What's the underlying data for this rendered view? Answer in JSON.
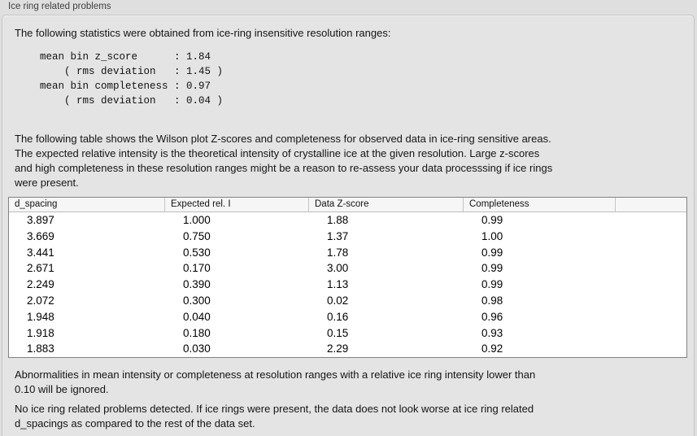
{
  "window": {
    "title": "Ice ring related problems"
  },
  "colors": {
    "window_bg": "#dfdfdf",
    "panel_bg": "#e4e4e4",
    "panel_border": "#c6c6c6",
    "table_border": "#828282",
    "table_header_bg": "#f6f6f6"
  },
  "panel": {
    "intro": "The following statistics were obtained from ice-ring insensitive resolution ranges:",
    "stats_block": "mean bin z_score      : 1.84\n    ( rms deviation   : 1.45 )\nmean bin completeness : 0.97\n    ( rms deviation   : 0.04 )",
    "table_description": "The following table shows the Wilson plot Z-scores and completeness for observed data in ice-ring sensitive areas.\nThe expected relative intensity is the theoretical intensity of crystalline ice at the given resolution. Large z-scores\nand high completeness in these resolution ranges might be a reason to re-assess your data processsing if ice rings\nwere present.",
    "table": {
      "headers": [
        "d_spacing",
        "Expected rel. I",
        "Data Z-score",
        "Completeness",
        ""
      ],
      "rows": [
        [
          "3.897",
          "1.000",
          "1.88",
          "0.99"
        ],
        [
          "3.669",
          "0.750",
          "1.37",
          "1.00"
        ],
        [
          "3.441",
          "0.530",
          "1.78",
          "0.99"
        ],
        [
          "2.671",
          "0.170",
          "3.00",
          "0.99"
        ],
        [
          "2.249",
          "0.390",
          "1.13",
          "0.99"
        ],
        [
          "2.072",
          "0.300",
          "0.02",
          "0.98"
        ],
        [
          "1.948",
          "0.040",
          "0.16",
          "0.96"
        ],
        [
          "1.918",
          "0.180",
          "0.15",
          "0.93"
        ],
        [
          "1.883",
          "0.030",
          "2.29",
          "0.92"
        ]
      ]
    },
    "ignore_note": "Abnormalities in mean intensity or completeness at resolution ranges with a relative ice ring intensity lower than\n0.10 will be ignored.",
    "conclusion": "No ice ring related problems detected. If ice rings were present, the data does not look worse at ice ring related\nd_spacings as compared to the rest of the data set."
  }
}
